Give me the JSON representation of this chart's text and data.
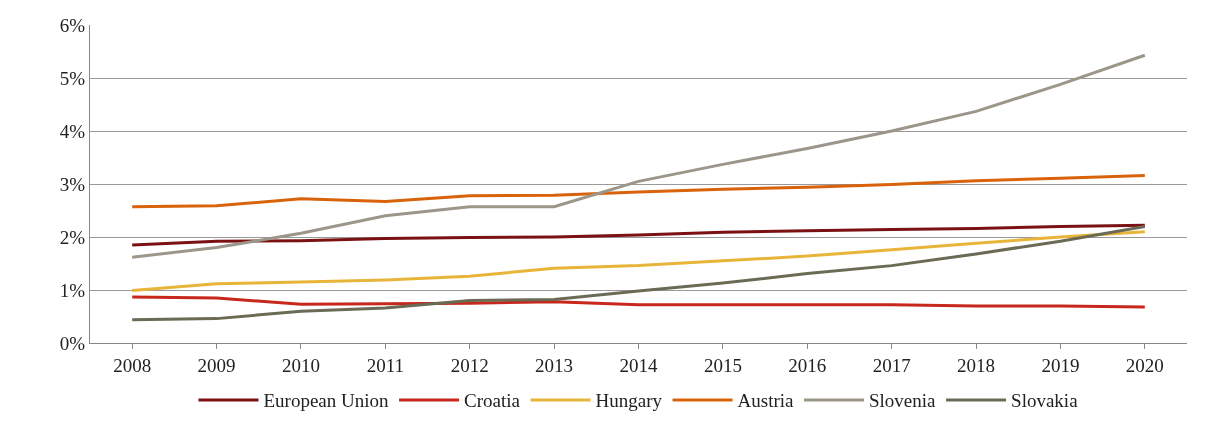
{
  "chart_data": {
    "type": "line",
    "categories": [
      "2008",
      "2009",
      "2010",
      "2011",
      "2012",
      "2013",
      "2014",
      "2015",
      "2016",
      "2017",
      "2018",
      "2019",
      "2020"
    ],
    "series": [
      {
        "name": "European Union",
        "color": "#7b1113",
        "values": [
          1.85,
          1.92,
          1.93,
          1.97,
          1.99,
          2.0,
          2.04,
          2.09,
          2.12,
          2.14,
          2.16,
          2.2,
          2.22
        ]
      },
      {
        "name": "Croatia",
        "color": "#c8281c",
        "values": [
          0.87,
          0.85,
          0.73,
          0.74,
          0.75,
          0.78,
          0.72,
          0.72,
          0.72,
          0.72,
          0.7,
          0.7,
          0.68
        ]
      },
      {
        "name": "Hungary",
        "color": "#e8b53a",
        "values": [
          0.99,
          1.12,
          1.15,
          1.19,
          1.26,
          1.41,
          1.46,
          1.55,
          1.64,
          1.76,
          1.88,
          2.0,
          2.1
        ]
      },
      {
        "name": "Austria",
        "color": "#d9630b",
        "values": [
          2.57,
          2.59,
          2.72,
          2.67,
          2.78,
          2.79,
          2.85,
          2.9,
          2.94,
          2.99,
          3.06,
          3.11,
          3.16
        ]
      },
      {
        "name": "Slovenia",
        "color": "#9c968a",
        "values": [
          1.62,
          1.8,
          2.07,
          2.4,
          2.57,
          2.57,
          3.05,
          3.37,
          3.67,
          4.0,
          4.37,
          4.88,
          5.43
        ]
      },
      {
        "name": "Slovakia",
        "color": "#6b6a55",
        "values": [
          0.44,
          0.46,
          0.6,
          0.66,
          0.8,
          0.82,
          0.98,
          1.13,
          1.31,
          1.46,
          1.68,
          1.92,
          2.2
        ]
      }
    ],
    "ylim": [
      0,
      6
    ],
    "yticks": [
      {
        "value": 0,
        "label": "0%"
      },
      {
        "value": 1,
        "label": "1%"
      },
      {
        "value": 2,
        "label": "2%"
      },
      {
        "value": 3,
        "label": "3%"
      },
      {
        "value": 4,
        "label": "4%"
      },
      {
        "value": 5,
        "label": "5%"
      },
      {
        "value": 6,
        "label": "6%"
      }
    ],
    "grid": "y",
    "legend": "bottom",
    "marker": "none",
    "line_style": "solid"
  }
}
